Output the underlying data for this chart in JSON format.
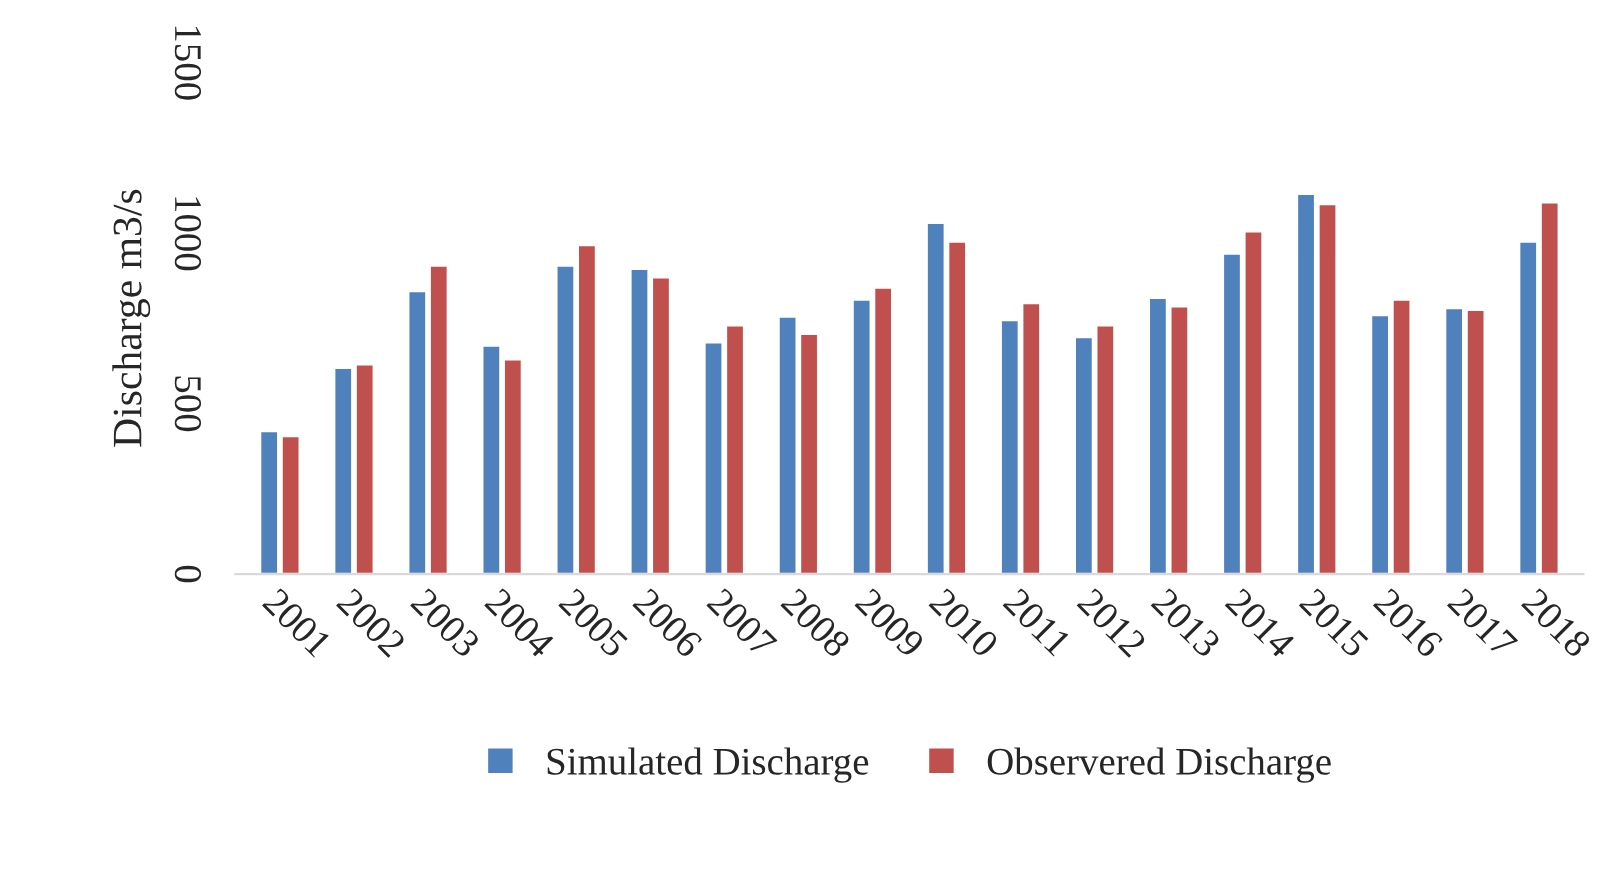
{
  "chart_data": {
    "type": "bar",
    "ylabel": "Discharge m3/s",
    "categories": [
      "2001",
      "2002",
      "2003",
      "2004",
      "2005",
      "2006",
      "2007",
      "2008",
      "2009",
      "2010",
      "2011",
      "2012",
      "2013",
      "2014",
      "2015",
      "2016",
      "2017",
      "2018"
    ],
    "series": [
      {
        "name": "Simulated Discharge",
        "color": "#4f81bd",
        "values": [
          420,
          605,
          830,
          670,
          905,
          895,
          680,
          755,
          805,
          1030,
          745,
          695,
          810,
          940,
          1115,
          760,
          780,
          975
        ]
      },
      {
        "name": "Observered Discharge",
        "color": "#c0504d",
        "values": [
          405,
          615,
          905,
          630,
          965,
          870,
          730,
          705,
          840,
          975,
          795,
          730,
          785,
          1005,
          1085,
          805,
          775,
          1090
        ]
      }
    ],
    "ylim": [
      0,
      1500
    ],
    "yticks": [
      0,
      500,
      1000,
      1500
    ],
    "grid": false,
    "legend": "bottom"
  }
}
